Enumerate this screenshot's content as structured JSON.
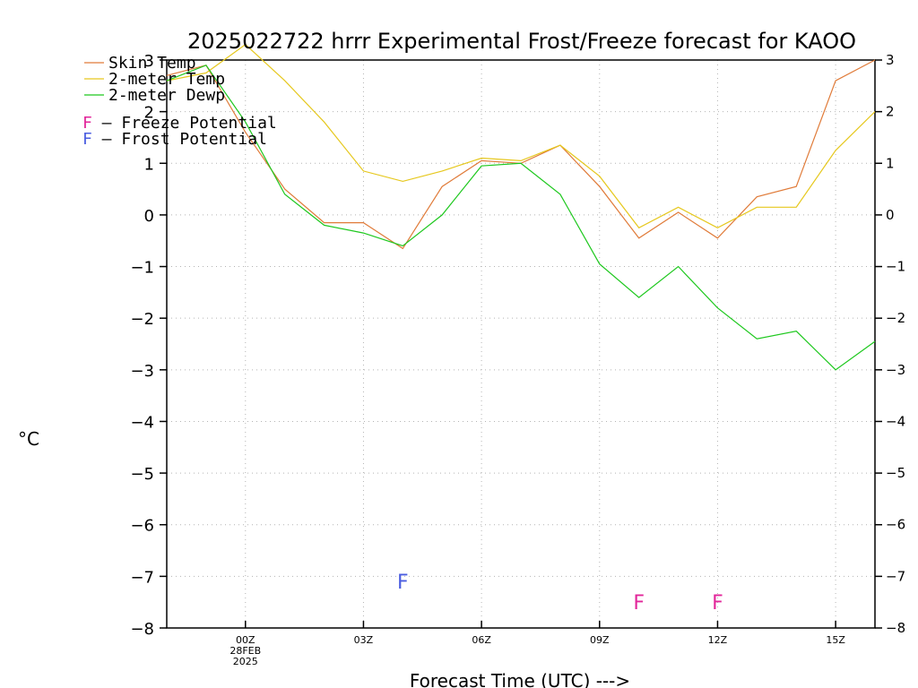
{
  "chart_data": {
    "type": "line",
    "title": "2025022722 hrrr Experimental Frost/Freeze forecast for KAOO",
    "ylabel_unit": "°C",
    "xlabel": "Forecast Time (UTC) --->",
    "ylim": [
      -8,
      3
    ],
    "yticks": [
      3,
      2,
      1,
      0,
      -1,
      -2,
      -3,
      -4,
      -5,
      -6,
      -7,
      -8
    ],
    "ytick_labels": [
      "3",
      "2",
      "1",
      "0",
      "−1",
      "−2",
      "−3",
      "−4",
      "−5",
      "−6",
      "−7",
      "−8"
    ],
    "xticks": [
      {
        "hour": 0,
        "lines": [
          "00Z",
          "28FEB",
          "2025"
        ]
      },
      {
        "hour": 3,
        "lines": [
          "03Z"
        ]
      },
      {
        "hour": 6,
        "lines": [
          "06Z"
        ]
      },
      {
        "hour": 9,
        "lines": [
          "09Z"
        ]
      },
      {
        "hour": 12,
        "lines": [
          "12Z"
        ]
      },
      {
        "hour": 15,
        "lines": [
          "15Z"
        ]
      }
    ],
    "xlim": [
      -2,
      16
    ],
    "x": [
      -2,
      -1,
      0,
      1,
      2,
      3,
      4,
      5,
      6,
      7,
      8,
      9,
      10,
      11,
      12,
      13,
      14,
      15,
      16
    ],
    "grid": true,
    "legend_position": "top-left",
    "series": [
      {
        "name": "Skin Temp",
        "color": "#e07b39",
        "values": [
          2.7,
          2.9,
          1.6,
          0.5,
          -0.15,
          -0.15,
          -0.65,
          0.55,
          1.05,
          1.0,
          1.35,
          0.55,
          -0.45,
          0.05,
          -0.45,
          0.35,
          0.55,
          2.6,
          3.0
        ]
      },
      {
        "name": "2-meter Temp",
        "color": "#e6c81e",
        "values": [
          2.6,
          2.75,
          3.3,
          2.6,
          1.8,
          0.85,
          0.65,
          0.85,
          1.1,
          1.05,
          1.35,
          0.75,
          -0.25,
          0.15,
          -0.25,
          0.15,
          0.15,
          1.25,
          2.0
        ]
      },
      {
        "name": "2-meter Dewp",
        "color": "#1ec81e",
        "values": [
          2.6,
          2.9,
          1.8,
          0.4,
          -0.2,
          -0.35,
          -0.6,
          0.0,
          0.95,
          1.0,
          0.4,
          -0.95,
          -1.6,
          -1.0,
          -1.8,
          -2.4,
          -2.25,
          -3.0,
          -2.45
        ]
      }
    ],
    "annotations": [
      {
        "label": "F",
        "kind": "frost",
        "hour": 4,
        "y": -7.1
      },
      {
        "label": "F",
        "kind": "freeze",
        "hour": 10,
        "y": -7.5
      },
      {
        "label": "F",
        "kind": "freeze",
        "hour": 12,
        "y": -7.5
      }
    ],
    "legend_extra": [
      {
        "marker": "F",
        "text": " – Freeze Potential",
        "color": "#e2269a"
      },
      {
        "marker": "F",
        "text": " – Frost Potential",
        "color": "#4a5de0"
      }
    ]
  }
}
